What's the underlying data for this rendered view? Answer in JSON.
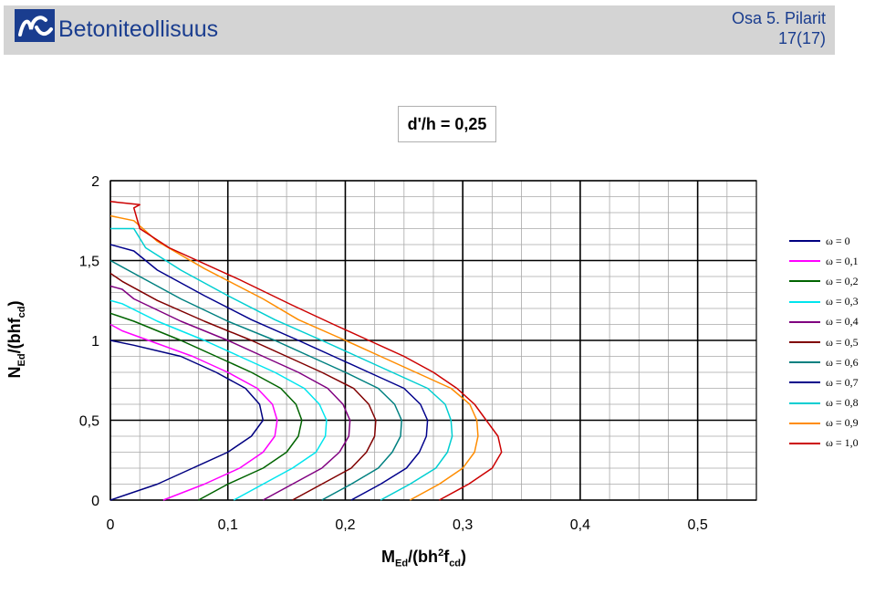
{
  "header": {
    "brand": "Betoniteollisuus",
    "section": "Osa 5. Pilarit",
    "page": "17(17)",
    "logo_icon": "betoniteollisuus-logo-icon"
  },
  "chart_data": {
    "type": "line",
    "title": "d'/h = 0,25",
    "xlim": [
      0,
      0.55
    ],
    "ylim": [
      0,
      2
    ],
    "x_ticks": [
      0,
      0.1,
      0.2,
      0.3,
      0.4,
      0.5
    ],
    "x_tick_labels": [
      "0",
      "0,1",
      "0,2",
      "0,3",
      "0,4",
      "0,5"
    ],
    "y_ticks": [
      0,
      0.5,
      1,
      1.5,
      2
    ],
    "y_tick_labels": [
      "0",
      "0,5",
      "1",
      "1,5",
      "2"
    ],
    "xlabel_parts": {
      "main": "M",
      "sub1": "Ed",
      "mid": "/(bh",
      "sup": "2",
      "mid2": "f",
      "sub2": "cd",
      "end": ")"
    },
    "ylabel_parts": {
      "main": "N",
      "sub1": "Ed",
      "mid": "/(bhf",
      "sub2": "cd",
      "end": ")"
    },
    "grid": true,
    "minor_grid_x": 0.025,
    "minor_grid_y": 0.1,
    "legend_position": "right",
    "series": [
      {
        "name": "ω = 0",
        "color": "#000080",
        "points": [
          [
            0,
            0
          ],
          [
            0.04,
            0.1
          ],
          [
            0.07,
            0.2
          ],
          [
            0.1,
            0.3
          ],
          [
            0.12,
            0.4
          ],
          [
            0.13,
            0.5
          ],
          [
            0.127,
            0.6
          ],
          [
            0.115,
            0.7
          ],
          [
            0.09,
            0.8
          ],
          [
            0.06,
            0.9
          ],
          [
            0.02,
            0.97
          ],
          [
            0,
            1.0
          ]
        ]
      },
      {
        "name": "ω = 0,1",
        "color": "#ff00ff",
        "points": [
          [
            0.045,
            0
          ],
          [
            0.08,
            0.1
          ],
          [
            0.11,
            0.2
          ],
          [
            0.13,
            0.3
          ],
          [
            0.14,
            0.4
          ],
          [
            0.142,
            0.5
          ],
          [
            0.138,
            0.6
          ],
          [
            0.125,
            0.7
          ],
          [
            0.1,
            0.8
          ],
          [
            0.07,
            0.9
          ],
          [
            0.04,
            0.98
          ],
          [
            0.01,
            1.06
          ],
          [
            0,
            1.1
          ]
        ]
      },
      {
        "name": "ω = 0,2",
        "color": "#006400",
        "points": [
          [
            0.075,
            0
          ],
          [
            0.1,
            0.1
          ],
          [
            0.13,
            0.2
          ],
          [
            0.15,
            0.3
          ],
          [
            0.16,
            0.4
          ],
          [
            0.163,
            0.5
          ],
          [
            0.158,
            0.6
          ],
          [
            0.145,
            0.7
          ],
          [
            0.12,
            0.8
          ],
          [
            0.09,
            0.9
          ],
          [
            0.06,
            1.0
          ],
          [
            0.02,
            1.12
          ],
          [
            0,
            1.17
          ]
        ]
      },
      {
        "name": "ω = 0,3",
        "color": "#00e5ee",
        "points": [
          [
            0.105,
            0
          ],
          [
            0.13,
            0.1
          ],
          [
            0.155,
            0.2
          ],
          [
            0.175,
            0.3
          ],
          [
            0.183,
            0.4
          ],
          [
            0.184,
            0.5
          ],
          [
            0.178,
            0.6
          ],
          [
            0.165,
            0.7
          ],
          [
            0.14,
            0.8
          ],
          [
            0.11,
            0.9
          ],
          [
            0.08,
            1.0
          ],
          [
            0.04,
            1.12
          ],
          [
            0.01,
            1.23
          ],
          [
            0,
            1.25
          ]
        ]
      },
      {
        "name": "ω = 0,4",
        "color": "#800080",
        "points": [
          [
            0.13,
            0
          ],
          [
            0.155,
            0.1
          ],
          [
            0.18,
            0.2
          ],
          [
            0.195,
            0.3
          ],
          [
            0.203,
            0.4
          ],
          [
            0.204,
            0.5
          ],
          [
            0.198,
            0.6
          ],
          [
            0.185,
            0.7
          ],
          [
            0.16,
            0.8
          ],
          [
            0.13,
            0.9
          ],
          [
            0.1,
            1.0
          ],
          [
            0.06,
            1.12
          ],
          [
            0.02,
            1.26
          ],
          [
            0.01,
            1.32
          ],
          [
            0,
            1.34
          ]
        ]
      },
      {
        "name": "ω = 0,5",
        "color": "#800000",
        "points": [
          [
            0.155,
            0
          ],
          [
            0.18,
            0.1
          ],
          [
            0.205,
            0.2
          ],
          [
            0.218,
            0.3
          ],
          [
            0.225,
            0.4
          ],
          [
            0.226,
            0.5
          ],
          [
            0.22,
            0.6
          ],
          [
            0.207,
            0.7
          ],
          [
            0.18,
            0.8
          ],
          [
            0.15,
            0.9
          ],
          [
            0.12,
            1.0
          ],
          [
            0.08,
            1.12
          ],
          [
            0.04,
            1.25
          ],
          [
            0.01,
            1.37
          ],
          [
            0,
            1.42
          ]
        ]
      },
      {
        "name": "ω = 0,6",
        "color": "#008080",
        "points": [
          [
            0.18,
            0
          ],
          [
            0.205,
            0.1
          ],
          [
            0.228,
            0.2
          ],
          [
            0.24,
            0.3
          ],
          [
            0.247,
            0.4
          ],
          [
            0.248,
            0.5
          ],
          [
            0.242,
            0.6
          ],
          [
            0.228,
            0.7
          ],
          [
            0.2,
            0.8
          ],
          [
            0.17,
            0.9
          ],
          [
            0.14,
            1.0
          ],
          [
            0.1,
            1.12
          ],
          [
            0.06,
            1.26
          ],
          [
            0.02,
            1.42
          ],
          [
            0,
            1.5
          ]
        ]
      },
      {
        "name": "ω = 0,7",
        "color": "#00008b",
        "points": [
          [
            0.205,
            0
          ],
          [
            0.23,
            0.1
          ],
          [
            0.252,
            0.2
          ],
          [
            0.263,
            0.3
          ],
          [
            0.269,
            0.4
          ],
          [
            0.27,
            0.5
          ],
          [
            0.264,
            0.6
          ],
          [
            0.25,
            0.7
          ],
          [
            0.22,
            0.8
          ],
          [
            0.19,
            0.9
          ],
          [
            0.16,
            1.0
          ],
          [
            0.12,
            1.13
          ],
          [
            0.08,
            1.28
          ],
          [
            0.04,
            1.44
          ],
          [
            0.02,
            1.56
          ],
          [
            0,
            1.6
          ]
        ]
      },
      {
        "name": "ω = 0,8",
        "color": "#00ced1",
        "points": [
          [
            0.23,
            0
          ],
          [
            0.255,
            0.1
          ],
          [
            0.277,
            0.2
          ],
          [
            0.287,
            0.3
          ],
          [
            0.291,
            0.4
          ],
          [
            0.29,
            0.5
          ],
          [
            0.285,
            0.6
          ],
          [
            0.27,
            0.7
          ],
          [
            0.24,
            0.8
          ],
          [
            0.21,
            0.9
          ],
          [
            0.18,
            1.0
          ],
          [
            0.14,
            1.13
          ],
          [
            0.1,
            1.28
          ],
          [
            0.06,
            1.44
          ],
          [
            0.03,
            1.58
          ],
          [
            0.02,
            1.7
          ],
          [
            0,
            1.7
          ]
        ]
      },
      {
        "name": "ω = 0,9",
        "color": "#ff8c00",
        "points": [
          [
            0.255,
            0
          ],
          [
            0.28,
            0.1
          ],
          [
            0.3,
            0.2
          ],
          [
            0.31,
            0.3
          ],
          [
            0.313,
            0.4
          ],
          [
            0.312,
            0.5
          ],
          [
            0.306,
            0.6
          ],
          [
            0.29,
            0.7
          ],
          [
            0.26,
            0.8
          ],
          [
            0.23,
            0.9
          ],
          [
            0.2,
            1.0
          ],
          [
            0.16,
            1.13
          ],
          [
            0.13,
            1.26
          ],
          [
            0.08,
            1.45
          ],
          [
            0.04,
            1.62
          ],
          [
            0.02,
            1.75
          ],
          [
            0,
            1.78
          ]
        ]
      },
      {
        "name": "ω = 1,0",
        "color": "#cc0000",
        "points": [
          [
            0.28,
            0
          ],
          [
            0.305,
            0.1
          ],
          [
            0.325,
            0.2
          ],
          [
            0.333,
            0.3
          ],
          [
            0.33,
            0.4
          ],
          [
            0.32,
            0.5
          ],
          [
            0.31,
            0.6
          ],
          [
            0.295,
            0.7
          ],
          [
            0.275,
            0.8
          ],
          [
            0.25,
            0.9
          ],
          [
            0.22,
            1.0
          ],
          [
            0.19,
            1.1
          ],
          [
            0.155,
            1.22
          ],
          [
            0.11,
            1.38
          ],
          [
            0.05,
            1.58
          ],
          [
            0.025,
            1.7
          ],
          [
            0.02,
            1.83
          ],
          [
            0.025,
            1.85
          ],
          [
            0,
            1.87
          ]
        ]
      }
    ]
  }
}
